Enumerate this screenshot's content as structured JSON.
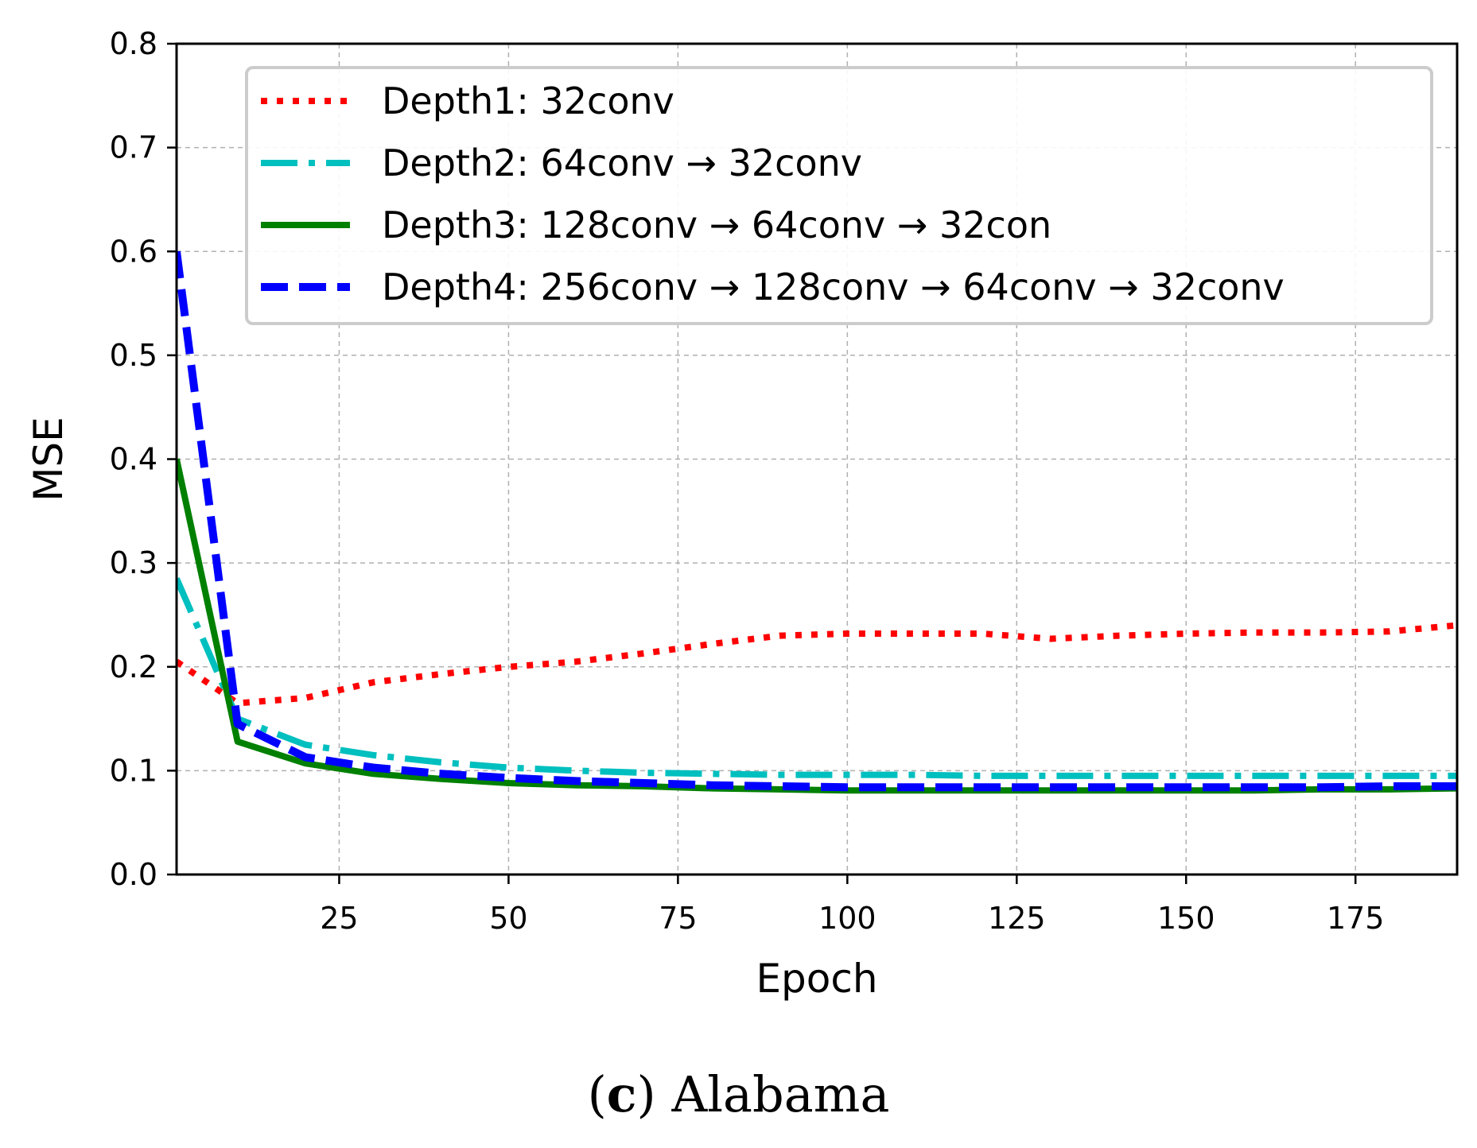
{
  "caption": {
    "prefix": "(",
    "letter": "c",
    "suffix": ")",
    "text": "Alabama"
  },
  "chart_data": {
    "type": "line",
    "title": "",
    "xlabel": "Epoch",
    "ylabel": "MSE",
    "xlim": [
      1,
      190
    ],
    "ylim": [
      0.0,
      0.8
    ],
    "xticks": [
      25,
      50,
      75,
      100,
      125,
      150,
      175
    ],
    "yticks": [
      0.0,
      0.1,
      0.2,
      0.3,
      0.4,
      0.5,
      0.6,
      0.7,
      0.8
    ],
    "ytick_labels": [
      "0.0",
      "0.1",
      "0.2",
      "0.3",
      "0.4",
      "0.5",
      "0.6",
      "0.7",
      "0.8"
    ],
    "grid": true,
    "legend_position": "top-right",
    "series": [
      {
        "name": "Depth1: 32conv",
        "color": "#ff0000",
        "style": "dotted",
        "x": [
          1,
          10,
          20,
          30,
          40,
          50,
          60,
          70,
          80,
          90,
          100,
          110,
          120,
          130,
          140,
          150,
          160,
          170,
          180,
          190
        ],
        "y": [
          0.205,
          0.165,
          0.17,
          0.185,
          0.193,
          0.2,
          0.205,
          0.213,
          0.222,
          0.23,
          0.232,
          0.232,
          0.232,
          0.227,
          0.23,
          0.232,
          0.233,
          0.233,
          0.234,
          0.24
        ]
      },
      {
        "name": "Depth2: 64conv → 32conv",
        "color": "#00bfbf",
        "style": "dashdot",
        "x": [
          1,
          10,
          20,
          30,
          40,
          50,
          60,
          70,
          80,
          90,
          100,
          110,
          120,
          130,
          140,
          150,
          160,
          170,
          180,
          190
        ],
        "y": [
          0.285,
          0.15,
          0.125,
          0.115,
          0.108,
          0.103,
          0.1,
          0.098,
          0.097,
          0.096,
          0.096,
          0.096,
          0.095,
          0.095,
          0.095,
          0.095,
          0.095,
          0.095,
          0.095,
          0.095
        ]
      },
      {
        "name": "Depth3: 128conv → 64conv → 32con",
        "color": "#008000",
        "style": "solid",
        "x": [
          1,
          10,
          20,
          30,
          40,
          50,
          60,
          70,
          80,
          90,
          100,
          110,
          120,
          130,
          140,
          150,
          160,
          170,
          180,
          190
        ],
        "y": [
          0.4,
          0.128,
          0.107,
          0.097,
          0.092,
          0.088,
          0.086,
          0.085,
          0.083,
          0.082,
          0.081,
          0.081,
          0.081,
          0.081,
          0.081,
          0.081,
          0.081,
          0.082,
          0.082,
          0.083
        ]
      },
      {
        "name": "Depth4: 256conv → 128conv → 64conv → 32conv",
        "color": "#0000ff",
        "style": "dashed",
        "x": [
          1,
          10,
          20,
          30,
          40,
          50,
          60,
          70,
          80,
          90,
          100,
          110,
          120,
          130,
          140,
          150,
          160,
          170,
          180,
          190
        ],
        "y": [
          0.6,
          0.145,
          0.113,
          0.103,
          0.097,
          0.093,
          0.09,
          0.088,
          0.086,
          0.085,
          0.084,
          0.084,
          0.084,
          0.084,
          0.084,
          0.084,
          0.084,
          0.084,
          0.085,
          0.085
        ]
      }
    ]
  }
}
